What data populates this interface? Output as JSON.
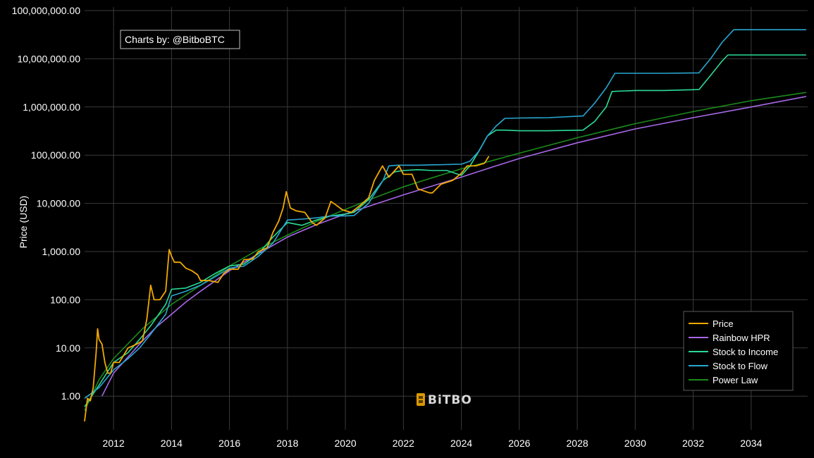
{
  "credit": "Charts by: @BitboBTC",
  "brand": "BiTBO",
  "chart_data": {
    "type": "line",
    "ylabel": "Price (USD)",
    "xlabel": "",
    "y_scale": "log",
    "ylim": [
      0.2,
      100000000
    ],
    "xlim": [
      2011.0,
      2035.95
    ],
    "x_ticks": [
      2012,
      2014,
      2016,
      2018,
      2020,
      2022,
      2024,
      2026,
      2028,
      2030,
      2032,
      2034
    ],
    "x_tick_labels": [
      "2012",
      "2014",
      "2016",
      "2018",
      "2020",
      "2022",
      "2024",
      "2026",
      "2028",
      "2030",
      "2032",
      "2034"
    ],
    "y_ticks": [
      1,
      10,
      100,
      1000,
      10000,
      100000,
      1000000,
      10000000,
      100000000
    ],
    "y_tick_labels": [
      "1.00",
      "10.00",
      "100.00",
      "1,000.00",
      "10,000.00",
      "100,000.00",
      "1,000,000.00",
      "10,000,000.00",
      "100,000,000.00"
    ],
    "grid": true,
    "legend_position": "bottom-right",
    "series": [
      {
        "name": "Price",
        "color": "#f2a900",
        "x": [
          2011.0,
          2011.1,
          2011.2,
          2011.3,
          2011.4,
          2011.45,
          2011.5,
          2011.6,
          2011.7,
          2011.8,
          2011.9,
          2012.0,
          2012.2,
          2012.5,
          2012.8,
          2013.0,
          2013.15,
          2013.28,
          2013.4,
          2013.6,
          2013.8,
          2013.92,
          2014.0,
          2014.1,
          2014.3,
          2014.5,
          2014.7,
          2014.9,
          2015.0,
          2015.3,
          2015.6,
          2015.8,
          2016.0,
          2016.3,
          2016.5,
          2016.8,
          2017.0,
          2017.3,
          2017.5,
          2017.7,
          2017.85,
          2017.96,
          2018.1,
          2018.3,
          2018.6,
          2018.85,
          2019.0,
          2019.3,
          2019.5,
          2019.7,
          2019.9,
          2020.2,
          2020.5,
          2020.8,
          2021.0,
          2021.28,
          2021.5,
          2021.85,
          2022.0,
          2022.3,
          2022.5,
          2022.9,
          2023.0,
          2023.3,
          2023.7,
          2024.0,
          2024.2,
          2024.5,
          2024.8,
          2024.95
        ],
        "y": [
          0.3,
          0.9,
          0.8,
          1.5,
          8,
          25,
          15,
          12,
          5,
          3,
          3,
          5,
          5,
          10,
          12,
          14,
          40,
          200,
          100,
          100,
          150,
          1100,
          800,
          600,
          600,
          450,
          400,
          330,
          250,
          250,
          230,
          350,
          430,
          430,
          680,
          700,
          1000,
          1200,
          2500,
          4300,
          8000,
          17500,
          8000,
          7000,
          6500,
          4000,
          3500,
          5000,
          11000,
          9000,
          7300,
          6500,
          9000,
          13000,
          30000,
          60000,
          35000,
          60000,
          40000,
          40000,
          20000,
          16500,
          16500,
          25000,
          30000,
          42000,
          60000,
          60000,
          68000,
          95000
        ]
      },
      {
        "name": "Rainbow HPR",
        "color": "#a868e8",
        "x": [
          2011.6,
          2012.0,
          2012.5,
          2013.0,
          2013.5,
          2014.0,
          2014.5,
          2015.0,
          2016.0,
          2017.0,
          2018.0,
          2019.0,
          2020.0,
          2021.0,
          2022.0,
          2023.0,
          2024.0,
          2025.0,
          2026.0,
          2028.0,
          2030.0,
          2032.0,
          2034.0,
          2035.9
        ],
        "y": [
          1,
          3,
          6.5,
          14,
          28,
          50,
          90,
          150,
          400,
          900,
          2000,
          3600,
          6000,
          9500,
          15000,
          23000,
          35000,
          55000,
          85000,
          180000,
          350000,
          600000,
          1000000,
          1650000
        ]
      },
      {
        "name": "Stock to Income",
        "color": "#2bdb96",
        "x": [
          2011.0,
          2011.5,
          2012.0,
          2012.5,
          2012.9,
          2013.3,
          2013.8,
          2014.0,
          2014.5,
          2015.0,
          2015.5,
          2016.0,
          2016.5,
          2017.0,
          2017.5,
          2018.0,
          2018.5,
          2019.0,
          2019.5,
          2020.0,
          2020.3,
          2020.8,
          2021.3,
          2021.7,
          2022.0,
          2022.5,
          2023.0,
          2023.5,
          2024.0,
          2024.3,
          2024.6,
          2024.9,
          2025.2,
          2025.5,
          2026.0,
          2027.0,
          2028.2,
          2028.6,
          2029.0,
          2029.2,
          2030.0,
          2031.0,
          2032.2,
          2032.6,
          2033.0,
          2033.2,
          2034.0,
          2035.0,
          2035.9
        ],
        "y": [
          0.6,
          1.7,
          5,
          8,
          15,
          30,
          80,
          165,
          175,
          230,
          350,
          500,
          550,
          900,
          2000,
          4000,
          3500,
          4500,
          5500,
          6000,
          6500,
          12000,
          30000,
          45000,
          48000,
          50000,
          48000,
          48000,
          38000,
          60000,
          120000,
          250000,
          330000,
          330000,
          320000,
          320000,
          330000,
          500000,
          1000000,
          2100000,
          2200000,
          2200000,
          2300000,
          4500000,
          9000000,
          12000000,
          12000000,
          12000000,
          12000000
        ]
      },
      {
        "name": "Stock to Flow",
        "color": "#29a8d2",
        "x": [
          2011.0,
          2011.5,
          2012.0,
          2012.5,
          2012.9,
          2013.3,
          2013.8,
          2014.0,
          2014.5,
          2015.0,
          2015.5,
          2016.0,
          2016.5,
          2017.0,
          2017.5,
          2018.0,
          2018.5,
          2019.0,
          2019.5,
          2020.0,
          2020.3,
          2020.8,
          2021.3,
          2021.5,
          2021.8,
          2022.0,
          2022.5,
          2023.0,
          2023.5,
          2024.0,
          2024.3,
          2024.6,
          2024.9,
          2025.2,
          2025.5,
          2026.0,
          2027.0,
          2028.2,
          2028.6,
          2029.0,
          2029.3,
          2030.0,
          2031.0,
          2032.2,
          2032.6,
          2033.0,
          2033.4,
          2034.0,
          2035.0,
          2035.9
        ],
        "y": [
          0.9,
          1.5,
          3.5,
          6,
          10,
          20,
          50,
          120,
          150,
          200,
          300,
          450,
          500,
          800,
          1500,
          4500,
          4700,
          5000,
          5500,
          5500,
          5600,
          10000,
          30000,
          60000,
          62000,
          62000,
          62000,
          63000,
          64000,
          65000,
          75000,
          120000,
          250000,
          400000,
          580000,
          590000,
          600000,
          650000,
          1200000,
          2500000,
          5000000,
          5000000,
          5000000,
          5100000,
          10000000,
          22000000,
          40000000,
          40000000,
          40000000,
          40000000
        ]
      },
      {
        "name": "Power Law",
        "color": "#1b8a1b",
        "x": [
          2011.0,
          2011.5,
          2012.0,
          2013.0,
          2014.0,
          2015.0,
          2016.0,
          2017.0,
          2018.0,
          2019.0,
          2020.0,
          2021.0,
          2022.0,
          2023.0,
          2024.0,
          2025.0,
          2026.0,
          2028.0,
          2030.0,
          2032.0,
          2034.0,
          2035.9
        ],
        "y": [
          0.5,
          2.2,
          6,
          25,
          80,
          200,
          500,
          1100,
          2200,
          4200,
          7500,
          13000,
          22000,
          34000,
          52000,
          75000,
          110000,
          230000,
          450000,
          800000,
          1350000,
          2000000
        ]
      }
    ]
  }
}
